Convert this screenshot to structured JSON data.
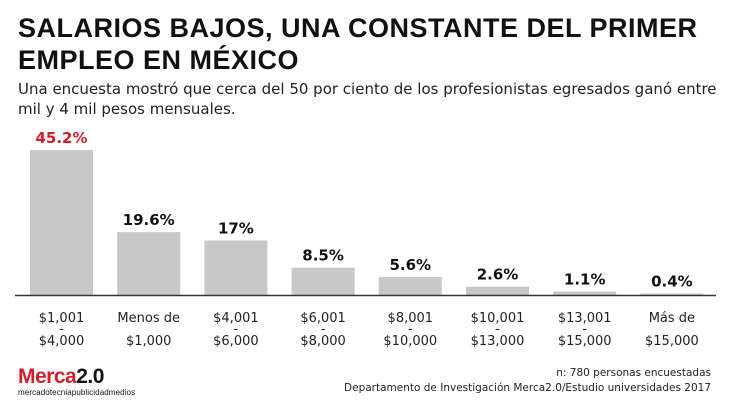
{
  "header": {
    "title": "SALARIOS BAJOS, UNA CONSTANTE DEL PRIMER EMPLEO EN MÉXICO",
    "subtitle": "Una encuesta mostró que cerca del 50 por ciento de los profesionistas egresados ganó entre mil y 4 mil pesos mensuales."
  },
  "chart_data": {
    "type": "bar",
    "title": "SALARIOS BAJOS, UNA CONSTANTE DEL PRIMER EMPLEO EN MÉXICO",
    "xlabel": "",
    "ylabel": "",
    "ylim": [
      0,
      45.2
    ],
    "grid": false,
    "categories": [
      [
        "$1,001",
        "-",
        "$4,000"
      ],
      [
        "Menos de",
        "$1,000"
      ],
      [
        "$4,001",
        "-",
        "$6,000"
      ],
      [
        "$6,001",
        "-",
        "$8,000"
      ],
      [
        "$8,001",
        "-",
        "$10,000"
      ],
      [
        "$10,001",
        "-",
        "$13,000"
      ],
      [
        "$13,001",
        "-",
        "$15,000"
      ],
      [
        "Más de",
        "$15,000"
      ]
    ],
    "values": [
      45.2,
      19.6,
      17,
      8.5,
      5.6,
      2.6,
      1.1,
      0.4
    ],
    "value_labels": [
      "45.2%",
      "19.6%",
      "17%",
      "8.5%",
      "5.6%",
      "2.6%",
      "1.1%",
      "0.4%"
    ],
    "highlight_index": 0,
    "colors": {
      "bar": "#c8c8c8",
      "highlight_text": "#d0202b",
      "axis": "#333333"
    }
  },
  "footer": {
    "sample_note": "n: 780 personas encuestadas",
    "source": "Departamento de Investigación Merca2.0/Estudio universidades 2017"
  },
  "brand": {
    "logo_word": "Merca",
    "logo_version": "2.0",
    "logo_tagline": "mercadotecniapublicidadmedios"
  }
}
